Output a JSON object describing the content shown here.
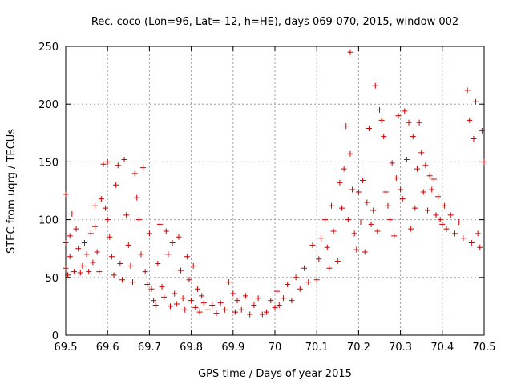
{
  "chart_data": {
    "type": "scatter",
    "title": "Rec. coco (Lon=96, Lat=-12, h=HE), days 069-070, 2015, window 002",
    "xlabel": "GPS time / Days of year 2015",
    "ylabel": "STEC from uqrg / TECUs",
    "xlim": [
      69.5,
      70.5
    ],
    "ylim": [
      0,
      250
    ],
    "xticks": [
      "69.5",
      "69.6",
      "69.7",
      "69.8",
      "69.9",
      "70",
      "70.1",
      "70.2",
      "70.3",
      "70.4",
      "70.5"
    ],
    "xtick_values": [
      69.5,
      69.6,
      69.7,
      69.8,
      69.9,
      70.0,
      70.1,
      70.2,
      70.3,
      70.4,
      70.5
    ],
    "yticks": [
      "0",
      "50",
      "100",
      "150",
      "200",
      "250"
    ],
    "ytick_values": [
      0,
      50,
      100,
      150,
      200,
      250
    ],
    "grid": true,
    "marker": "+",
    "color": "#cc0000",
    "series": [
      {
        "name": "STEC",
        "points": [
          [
            69.5,
            122
          ],
          [
            69.5,
            80
          ],
          [
            69.5,
            58
          ],
          [
            69.505,
            52
          ],
          [
            69.51,
            68
          ],
          [
            69.51,
            86
          ],
          [
            69.515,
            105
          ],
          [
            69.52,
            55
          ],
          [
            69.525,
            92
          ],
          [
            69.53,
            75
          ],
          [
            69.535,
            54
          ],
          [
            69.54,
            60
          ],
          [
            69.545,
            80
          ],
          [
            69.55,
            70
          ],
          [
            69.555,
            55
          ],
          [
            69.56,
            88
          ],
          [
            69.565,
            63
          ],
          [
            69.57,
            112
          ],
          [
            69.57,
            94
          ],
          [
            69.575,
            72
          ],
          [
            69.58,
            55
          ],
          [
            69.585,
            118
          ],
          [
            69.59,
            148
          ],
          [
            69.595,
            110
          ],
          [
            69.6,
            150
          ],
          [
            69.6,
            100
          ],
          [
            69.605,
            85
          ],
          [
            69.61,
            68
          ],
          [
            69.615,
            52
          ],
          [
            69.62,
            130
          ],
          [
            69.625,
            147
          ],
          [
            69.63,
            62
          ],
          [
            69.635,
            48
          ],
          [
            69.64,
            152
          ],
          [
            69.645,
            104
          ],
          [
            69.65,
            78
          ],
          [
            69.655,
            60
          ],
          [
            69.66,
            46
          ],
          [
            69.665,
            140
          ],
          [
            69.67,
            119
          ],
          [
            69.675,
            100
          ],
          [
            69.68,
            70
          ],
          [
            69.685,
            145
          ],
          [
            69.69,
            55
          ],
          [
            69.695,
            44
          ],
          [
            69.7,
            88
          ],
          [
            69.705,
            40
          ],
          [
            69.71,
            30
          ],
          [
            69.715,
            26
          ],
          [
            69.72,
            62
          ],
          [
            69.725,
            96
          ],
          [
            69.73,
            42
          ],
          [
            69.735,
            33
          ],
          [
            69.74,
            90
          ],
          [
            69.745,
            70
          ],
          [
            69.75,
            25
          ],
          [
            69.755,
            80
          ],
          [
            69.76,
            36
          ],
          [
            69.765,
            27
          ],
          [
            69.77,
            85
          ],
          [
            69.775,
            56
          ],
          [
            69.78,
            32
          ],
          [
            69.785,
            22
          ],
          [
            69.79,
            68
          ],
          [
            69.795,
            48
          ],
          [
            69.8,
            30
          ],
          [
            69.805,
            60
          ],
          [
            69.81,
            24
          ],
          [
            69.815,
            40
          ],
          [
            69.82,
            20
          ],
          [
            69.825,
            34
          ],
          [
            69.83,
            28
          ],
          [
            69.84,
            22
          ],
          [
            69.85,
            26
          ],
          [
            69.86,
            19
          ],
          [
            69.87,
            28
          ],
          [
            69.88,
            22
          ],
          [
            69.89,
            46
          ],
          [
            69.9,
            36
          ],
          [
            69.905,
            20
          ],
          [
            69.91,
            30
          ],
          [
            69.92,
            22
          ],
          [
            69.93,
            34
          ],
          [
            69.94,
            18
          ],
          [
            69.95,
            26
          ],
          [
            69.96,
            32
          ],
          [
            69.97,
            18
          ],
          [
            69.98,
            20
          ],
          [
            69.99,
            30
          ],
          [
            70.0,
            24
          ],
          [
            70.005,
            38
          ],
          [
            70.01,
            26
          ],
          [
            70.02,
            32
          ],
          [
            70.03,
            44
          ],
          [
            70.04,
            30
          ],
          [
            70.05,
            50
          ],
          [
            70.06,
            40
          ],
          [
            70.07,
            58
          ],
          [
            70.08,
            46
          ],
          [
            70.09,
            78
          ],
          [
            70.1,
            48
          ],
          [
            70.105,
            66
          ],
          [
            70.11,
            84
          ],
          [
            70.12,
            100
          ],
          [
            70.125,
            76
          ],
          [
            70.13,
            58
          ],
          [
            70.135,
            112
          ],
          [
            70.14,
            90
          ],
          [
            70.15,
            64
          ],
          [
            70.155,
            132
          ],
          [
            70.16,
            110
          ],
          [
            70.165,
            144
          ],
          [
            70.17,
            181
          ],
          [
            70.175,
            100
          ],
          [
            70.18,
            157
          ],
          [
            70.18,
            245
          ],
          [
            70.185,
            126
          ],
          [
            70.19,
            88
          ],
          [
            70.195,
            74
          ],
          [
            70.2,
            124
          ],
          [
            70.205,
            98
          ],
          [
            70.21,
            134
          ],
          [
            70.215,
            72
          ],
          [
            70.22,
            115
          ],
          [
            70.225,
            179
          ],
          [
            70.23,
            96
          ],
          [
            70.235,
            108
          ],
          [
            70.24,
            216
          ],
          [
            70.245,
            90
          ],
          [
            70.25,
            195
          ],
          [
            70.255,
            186
          ],
          [
            70.26,
            172
          ],
          [
            70.265,
            124
          ],
          [
            70.27,
            112
          ],
          [
            70.275,
            100
          ],
          [
            70.28,
            149
          ],
          [
            70.285,
            86
          ],
          [
            70.29,
            136
          ],
          [
            70.295,
            190
          ],
          [
            70.3,
            126
          ],
          [
            70.305,
            118
          ],
          [
            70.31,
            194
          ],
          [
            70.315,
            152
          ],
          [
            70.32,
            184
          ],
          [
            70.325,
            92
          ],
          [
            70.33,
            172
          ],
          [
            70.335,
            110
          ],
          [
            70.34,
            144
          ],
          [
            70.345,
            184
          ],
          [
            70.35,
            158
          ],
          [
            70.355,
            124
          ],
          [
            70.36,
            147
          ],
          [
            70.365,
            108
          ],
          [
            70.37,
            138
          ],
          [
            70.375,
            126
          ],
          [
            70.38,
            135
          ],
          [
            70.385,
            104
          ],
          [
            70.39,
            120
          ],
          [
            70.395,
            100
          ],
          [
            70.4,
            96
          ],
          [
            70.405,
            112
          ],
          [
            70.41,
            92
          ],
          [
            70.42,
            104
          ],
          [
            70.43,
            88
          ],
          [
            70.44,
            98
          ],
          [
            70.45,
            84
          ],
          [
            70.46,
            212
          ],
          [
            70.465,
            186
          ],
          [
            70.47,
            80
          ],
          [
            70.475,
            170
          ],
          [
            70.48,
            202
          ],
          [
            70.485,
            88
          ],
          [
            70.49,
            76
          ],
          [
            70.495,
            177
          ],
          [
            70.5,
            150
          ]
        ]
      }
    ]
  }
}
